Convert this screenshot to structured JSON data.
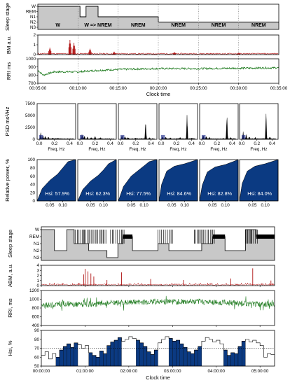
{
  "colors": {
    "sleep_fill": "#c8c8c8",
    "bm": "#b01515",
    "rri": "#1d7a1d",
    "psd_fill": "#1f2d8a",
    "blue": "#0b3a82",
    "frame": "#000000"
  },
  "chart_data": [
    {
      "id": "top_sleep_stage",
      "type": "line",
      "ylabel": "Sleep stage",
      "yticks": [
        "W",
        "REM",
        "N1",
        "N2",
        "N3"
      ],
      "x_range": [
        "00:05:00",
        "00:35:00"
      ],
      "annotations": [
        "W",
        "W => NREM",
        "NREM",
        "NREM",
        "NREM",
        "NREM"
      ],
      "steps": [
        {
          "from": "00:05:00",
          "to": "00:10:15",
          "stage": "W"
        },
        {
          "from": "00:10:15",
          "to": "00:11:00",
          "stage": "N1"
        },
        {
          "from": "00:11:00",
          "to": "00:12:30",
          "stage": "W"
        },
        {
          "from": "00:12:30",
          "to": "00:20:00",
          "stage": "N1"
        },
        {
          "from": "00:20:00",
          "to": "00:35:00",
          "stage": "N2"
        }
      ]
    },
    {
      "id": "top_bm",
      "type": "line",
      "ylabel": "BM a.u.",
      "ylim": [
        0,
        2
      ],
      "yticks": [
        0,
        1,
        2
      ],
      "peaks": [
        {
          "t": "00:06:30",
          "value": 0.7
        },
        {
          "t": "00:09:00",
          "value": 1.5
        },
        {
          "t": "00:09:30",
          "value": 1.2
        },
        {
          "t": "00:11:30",
          "value": 0.6
        },
        {
          "t": "00:14:30",
          "value": 0.3
        },
        {
          "t": "00:22:00",
          "value": 0.25
        },
        {
          "t": "00:30:00",
          "value": 0.2
        }
      ]
    },
    {
      "id": "top_rri",
      "type": "line",
      "ylabel": "RRI ms",
      "ylim": [
        700,
        1000
      ],
      "yticks": [
        700,
        800,
        900,
        1000
      ],
      "xticks": [
        "00:05:00",
        "00:10:00",
        "00:15:00",
        "00:20:00",
        "00:25:00",
        "00:30:00",
        "00:35:00"
      ],
      "xlabel": "Clock time",
      "points": [
        {
          "t": "00:05:00",
          "value": 860
        },
        {
          "t": "00:05:40",
          "value": 800
        },
        {
          "t": "00:07:00",
          "value": 840
        },
        {
          "t": "00:10:00",
          "value": 840
        },
        {
          "t": "00:12:00",
          "value": 855
        },
        {
          "t": "00:15:00",
          "value": 870
        },
        {
          "t": "00:20:00",
          "value": 880
        },
        {
          "t": "00:25:00",
          "value": 880
        },
        {
          "t": "00:30:00",
          "value": 885
        },
        {
          "t": "00:35:00",
          "value": 890
        }
      ]
    },
    {
      "id": "psd",
      "type": "area",
      "ylabel": "PSD ms²/Hz",
      "xlabel": "Freq, Hz",
      "ylim": [
        0,
        7500
      ],
      "yticks": [
        0,
        2500,
        5000,
        7500
      ],
      "xticks": [
        "0.0",
        "0.2",
        "0.4"
      ],
      "panels": [
        {
          "peaks": [
            {
              "f": 0.02,
              "v": 1300
            },
            {
              "f": 0.05,
              "v": 800
            },
            {
              "f": 0.08,
              "v": 600
            },
            {
              "f": 0.12,
              "v": 400
            },
            {
              "f": 0.18,
              "v": 250
            },
            {
              "f": 0.25,
              "v": 150
            }
          ]
        },
        {
          "peaks": [
            {
              "f": 0.03,
              "v": 1000
            },
            {
              "f": 0.06,
              "v": 700
            },
            {
              "f": 0.1,
              "v": 500
            },
            {
              "f": 0.15,
              "v": 300
            },
            {
              "f": 0.2,
              "v": 700
            },
            {
              "f": 0.27,
              "v": 250
            }
          ]
        },
        {
          "peaks": [
            {
              "f": 0.02,
              "v": 800
            },
            {
              "f": 0.06,
              "v": 500
            },
            {
              "f": 0.1,
              "v": 300
            },
            {
              "f": 0.2,
              "v": 200
            },
            {
              "f": 0.33,
              "v": 4200
            },
            {
              "f": 0.38,
              "v": 300
            }
          ]
        },
        {
          "peaks": [
            {
              "f": 0.02,
              "v": 600
            },
            {
              "f": 0.06,
              "v": 400
            },
            {
              "f": 0.12,
              "v": 250
            },
            {
              "f": 0.25,
              "v": 400
            },
            {
              "f": 0.34,
              "v": 6300
            },
            {
              "f": 0.4,
              "v": 200
            }
          ]
        },
        {
          "peaks": [
            {
              "f": 0.02,
              "v": 900
            },
            {
              "f": 0.06,
              "v": 600
            },
            {
              "f": 0.1,
              "v": 400
            },
            {
              "f": 0.33,
              "v": 5600
            },
            {
              "f": 0.38,
              "v": 300
            }
          ]
        },
        {
          "peaks": [
            {
              "f": 0.02,
              "v": 1500
            },
            {
              "f": 0.06,
              "v": 900
            },
            {
              "f": 0.1,
              "v": 500
            },
            {
              "f": 0.18,
              "v": 300
            },
            {
              "f": 0.32,
              "v": 5800
            },
            {
              "f": 0.37,
              "v": 400
            }
          ]
        }
      ]
    },
    {
      "id": "relative_power",
      "type": "area",
      "ylabel": "Relative power, %",
      "ylim": [
        0,
        100
      ],
      "yticks": [
        0,
        20,
        40,
        60,
        80,
        100
      ],
      "xticks": [
        "0.05",
        "0.10"
      ],
      "panels": [
        {
          "hsi": "Hsi: 57.9%",
          "curve": [
            [
              0.0,
              0
            ],
            [
              0.02,
              30
            ],
            [
              0.05,
              50
            ],
            [
              0.08,
              65
            ],
            [
              0.1,
              80
            ],
            [
              0.12,
              95
            ],
            [
              0.15,
              100
            ]
          ]
        },
        {
          "hsi": "Hsi: 62.3%",
          "curve": [
            [
              0.0,
              0
            ],
            [
              0.02,
              28
            ],
            [
              0.05,
              48
            ],
            [
              0.08,
              62
            ],
            [
              0.1,
              75
            ],
            [
              0.12,
              90
            ],
            [
              0.15,
              100
            ]
          ]
        },
        {
          "hsi": "Hsi: 77.5%",
          "curve": [
            [
              0.0,
              0
            ],
            [
              0.02,
              35
            ],
            [
              0.05,
              60
            ],
            [
              0.08,
              75
            ],
            [
              0.1,
              85
            ],
            [
              0.12,
              95
            ],
            [
              0.15,
              100
            ]
          ]
        },
        {
          "hsi": "Hsi: 84.6%",
          "curve": [
            [
              0.0,
              0
            ],
            [
              0.01,
              40
            ],
            [
              0.03,
              72
            ],
            [
              0.06,
              84
            ],
            [
              0.1,
              90
            ],
            [
              0.13,
              96
            ],
            [
              0.15,
              100
            ]
          ]
        },
        {
          "hsi": "Hsi: 82.8%",
          "curve": [
            [
              0.0,
              0
            ],
            [
              0.01,
              38
            ],
            [
              0.03,
              70
            ],
            [
              0.06,
              82
            ],
            [
              0.1,
              88
            ],
            [
              0.13,
              95
            ],
            [
              0.15,
              100
            ]
          ]
        },
        {
          "hsi": "Hsi: 84.0%",
          "curve": [
            [
              0.0,
              0
            ],
            [
              0.01,
              42
            ],
            [
              0.03,
              72
            ],
            [
              0.06,
              84
            ],
            [
              0.1,
              90
            ],
            [
              0.13,
              96
            ],
            [
              0.15,
              100
            ]
          ]
        }
      ]
    },
    {
      "id": "night_sleep_stage",
      "type": "line",
      "ylabel": "Sleep stage",
      "yticks": [
        "W",
        "REM",
        "N1",
        "N2",
        "N3"
      ],
      "x_range": [
        "00:00:00",
        "05:20:00"
      ],
      "rem_periods": [
        [
          "01:52",
          "02:05"
        ],
        [
          "03:55",
          "04:12"
        ],
        [
          "04:55",
          "05:20"
        ]
      ],
      "steps": [
        {
          "from": "00:00",
          "to": "00:18",
          "stage": "W"
        },
        {
          "from": "00:18",
          "to": "00:35",
          "stage": "N2"
        },
        {
          "from": "00:35",
          "to": "00:45",
          "stage": "W"
        },
        {
          "from": "00:45",
          "to": "01:05",
          "stage": "N1"
        },
        {
          "from": "01:05",
          "to": "01:30",
          "stage": "N2"
        },
        {
          "from": "01:30",
          "to": "01:45",
          "stage": "N3"
        },
        {
          "from": "01:45",
          "to": "01:52",
          "stage": "N1"
        },
        {
          "from": "01:52",
          "to": "02:05",
          "stage": "REM"
        },
        {
          "from": "02:05",
          "to": "02:40",
          "stage": "N2"
        },
        {
          "from": "02:40",
          "to": "02:55",
          "stage": "N1"
        },
        {
          "from": "02:55",
          "to": "03:40",
          "stage": "N2"
        },
        {
          "from": "03:40",
          "to": "03:55",
          "stage": "N1"
        },
        {
          "from": "03:55",
          "to": "04:12",
          "stage": "REM"
        },
        {
          "from": "04:12",
          "to": "04:40",
          "stage": "N2"
        },
        {
          "from": "04:40",
          "to": "04:55",
          "stage": "W"
        },
        {
          "from": "04:55",
          "to": "05:20",
          "stage": "REM"
        }
      ]
    },
    {
      "id": "night_abm",
      "type": "line",
      "ylabel": "ABM, a.u.",
      "ylim": [
        0,
        4
      ],
      "yticks": [
        0,
        1,
        2,
        3,
        4
      ],
      "peaks": [
        {
          "t": "00:58",
          "value": 2.2
        },
        {
          "t": "01:00",
          "value": 3.3
        },
        {
          "t": "01:04",
          "value": 2.8
        },
        {
          "t": "01:08",
          "value": 2.4
        },
        {
          "t": "01:12",
          "value": 1.8
        },
        {
          "t": "01:30",
          "value": 1.1
        },
        {
          "t": "01:50",
          "value": 2.6
        },
        {
          "t": "02:30",
          "value": 1.3
        },
        {
          "t": "03:15",
          "value": 1.1
        },
        {
          "t": "04:20",
          "value": 1.4
        },
        {
          "t": "04:50",
          "value": 3.4
        },
        {
          "t": "05:15",
          "value": 1.0
        }
      ]
    },
    {
      "id": "night_rri",
      "type": "line",
      "ylabel": "RRI, ms",
      "ylim": [
        400,
        1200
      ],
      "yticks": [
        400,
        600,
        800,
        1000,
        1200
      ],
      "points": [
        {
          "t": "00:00",
          "value": 850
        },
        {
          "t": "00:30",
          "value": 900
        },
        {
          "t": "01:00",
          "value": 880
        },
        {
          "t": "01:30",
          "value": 910
        },
        {
          "t": "02:00",
          "value": 930
        },
        {
          "t": "02:30",
          "value": 950
        },
        {
          "t": "03:00",
          "value": 940
        },
        {
          "t": "03:30",
          "value": 950
        },
        {
          "t": "04:00",
          "value": 930
        },
        {
          "t": "04:30",
          "value": 910
        },
        {
          "t": "05:00",
          "value": 890
        },
        {
          "t": "05:20",
          "value": 880
        }
      ]
    },
    {
      "id": "night_hsi",
      "type": "bar",
      "ylabel": "Hsi, %",
      "xlabel": "Clock time",
      "ylim": [
        50,
        90
      ],
      "yticks": [
        50,
        60,
        70,
        80,
        90
      ],
      "threshold": 70,
      "xticks": [
        "00:00:00",
        "01:00:00",
        "02:00:00",
        "03:00:00",
        "04:00:00",
        "05:00:00"
      ],
      "highlight_periods": [
        [
          "00:18",
          "00:48"
        ],
        [
          "01:05",
          "01:48"
        ],
        [
          "02:08",
          "02:40"
        ],
        [
          "02:56",
          "03:38"
        ],
        [
          "04:12",
          "04:40"
        ]
      ],
      "values": [
        62,
        66,
        58,
        64,
        60,
        68,
        72,
        75,
        71,
        76,
        74,
        70,
        73,
        65,
        62,
        60,
        67,
        64,
        73,
        77,
        79,
        82,
        78,
        80,
        83,
        81,
        79,
        76,
        72,
        66,
        63,
        68,
        76,
        80,
        83,
        81,
        78,
        79,
        75,
        71,
        66,
        64,
        68,
        72,
        78,
        82,
        80,
        77,
        79,
        75,
        68,
        62,
        65,
        64,
        72,
        78,
        80,
        77,
        79,
        76,
        73,
        60,
        64,
        63
      ]
    }
  ]
}
